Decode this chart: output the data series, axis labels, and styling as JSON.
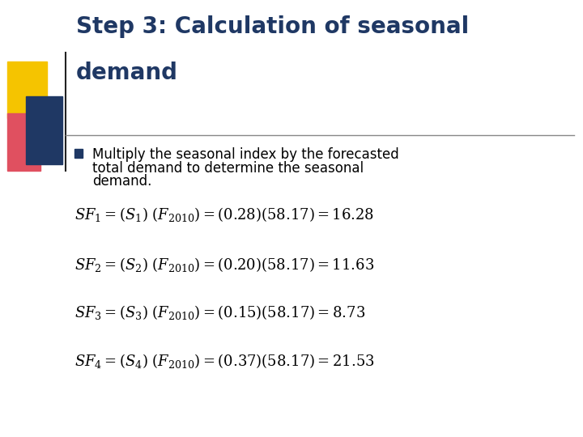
{
  "title_line1": "Step 3: Calculation of seasonal",
  "title_line2": "demand",
  "title_color": "#1F3864",
  "bg_color": "#FFFFFF",
  "bullet_text_line1": "Multiply the seasonal index by the forecasted",
  "bullet_text_line2": "total demand to determine the seasonal",
  "bullet_text_line3": "demand.",
  "bullet_color": "#000000",
  "bullet_marker_color": "#1F3864",
  "formulas": [
    {
      "sf": "1",
      "s": "1",
      "factor": "0.28",
      "result": "16.28"
    },
    {
      "sf": "2",
      "s": "2",
      "factor": "0.20",
      "result": "11.63"
    },
    {
      "sf": "3",
      "s": "3",
      "factor": "0.15",
      "result": "8.73"
    },
    {
      "sf": "4",
      "s": "4",
      "factor": "0.37",
      "result": "21.53"
    }
  ],
  "formula_color": "#000000",
  "year": "2010",
  "total_demand": "58.17",
  "yellow_color": "#F5C400",
  "red_color": "#E05060",
  "blue_color": "#1F3864",
  "sep_color": "#888888",
  "vline_color": "#222222"
}
